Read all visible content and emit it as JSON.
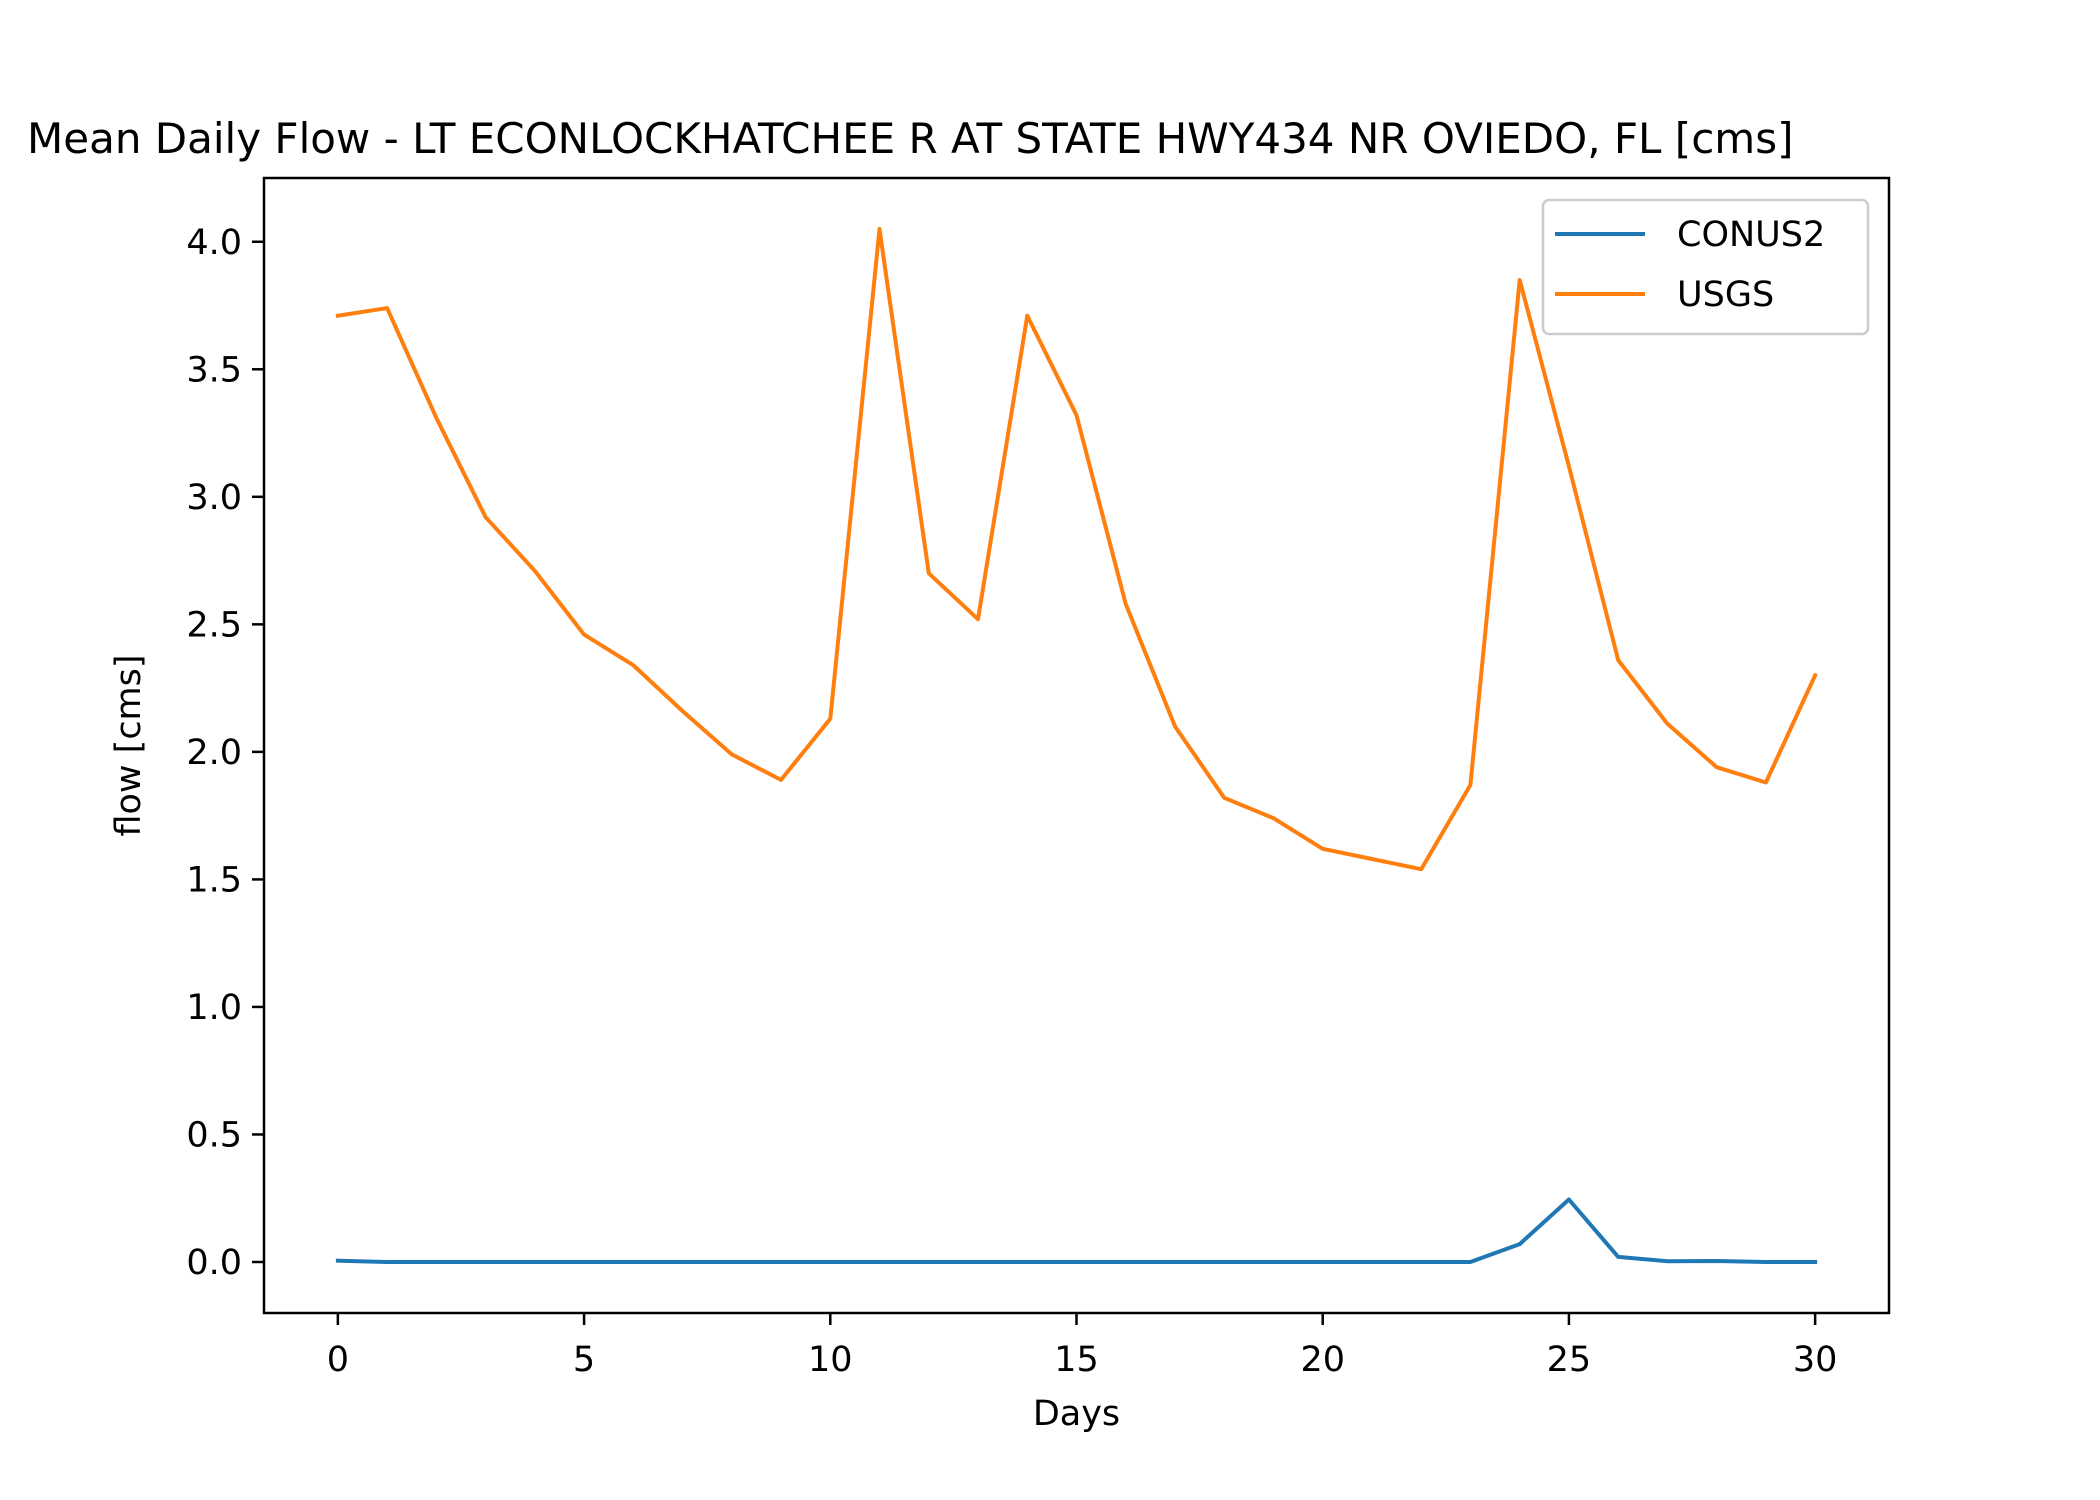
{
  "chart_data": {
    "type": "line",
    "title": "Mean Daily Flow - LT ECONLOCKHATCHEE R AT STATE HWY434 NR OVIEDO, FL [cms]",
    "xlabel": "Days",
    "ylabel": "flow [cms]",
    "xlim": [
      -1.5,
      31.5
    ],
    "ylim": [
      -0.2,
      4.25
    ],
    "xticks": [
      0,
      5,
      10,
      15,
      20,
      25,
      30
    ],
    "xtick_labels": [
      "0",
      "5",
      "10",
      "15",
      "20",
      "25",
      "30"
    ],
    "yticks": [
      0.0,
      0.5,
      1.0,
      1.5,
      2.0,
      2.5,
      3.0,
      3.5,
      4.0
    ],
    "ytick_labels": [
      "0.0",
      "0.5",
      "1.0",
      "1.5",
      "2.0",
      "2.5",
      "3.0",
      "3.5",
      "4.0"
    ],
    "grid": false,
    "legend_position": "top-right",
    "x": [
      0,
      1,
      2,
      3,
      4,
      5,
      6,
      7,
      8,
      9,
      10,
      11,
      12,
      13,
      14,
      15,
      16,
      17,
      18,
      19,
      20,
      21,
      22,
      23,
      24,
      25,
      26,
      27,
      28,
      29,
      30
    ],
    "series": [
      {
        "name": "CONUS2",
        "color": "#1f77b4",
        "values": [
          0.005,
          0.0,
          0.0,
          0.0,
          0.0,
          0.0,
          0.0,
          0.0,
          0.0,
          0.0,
          0.0,
          0.0,
          0.0,
          0.0,
          0.0,
          0.0,
          0.0,
          0.0,
          0.0,
          0.0,
          0.0,
          0.0,
          0.0,
          0.0,
          0.07,
          0.245,
          0.02,
          0.003,
          0.004,
          0.0,
          0.0
        ]
      },
      {
        "name": "USGS",
        "color": "#ff7f0e",
        "values": [
          3.71,
          3.74,
          3.31,
          2.92,
          2.71,
          2.46,
          2.34,
          2.16,
          1.99,
          1.89,
          2.13,
          4.05,
          2.7,
          2.52,
          3.71,
          3.32,
          2.58,
          2.1,
          1.82,
          1.74,
          1.62,
          1.58,
          1.54,
          1.87,
          3.85,
          3.12,
          2.36,
          2.11,
          1.94,
          1.88,
          2.3
        ]
      }
    ]
  }
}
